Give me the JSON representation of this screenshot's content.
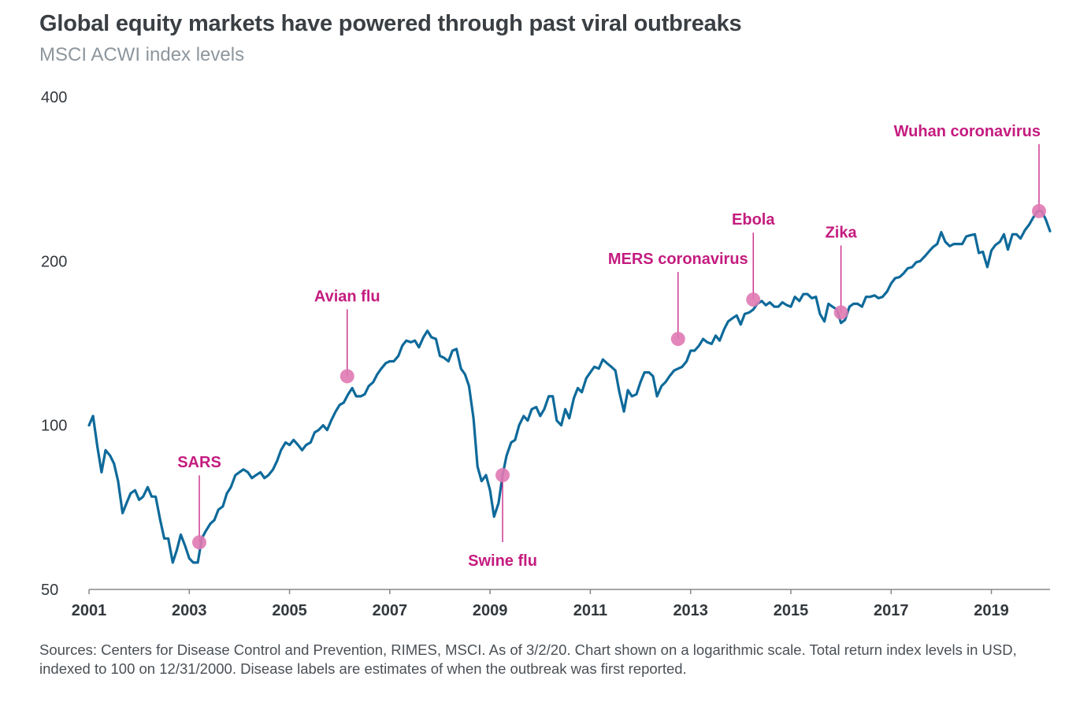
{
  "chart_data": {
    "type": "line",
    "title": "Global equity markets have powered through past viral outbreaks",
    "subtitle": "MSCI ACWI index levels",
    "y_scale": "log",
    "ylim": [
      50,
      400
    ],
    "y_ticks": [
      {
        "value": 50,
        "label": "50"
      },
      {
        "value": 100,
        "label": "100"
      },
      {
        "value": 200,
        "label": "200"
      },
      {
        "value": 400,
        "label": "400"
      }
    ],
    "xlim": [
      2001.0,
      2020.17
    ],
    "x_ticks": [
      {
        "value": 2001,
        "label": "2001"
      },
      {
        "value": 2003,
        "label": "2003"
      },
      {
        "value": 2005,
        "label": "2005"
      },
      {
        "value": 2007,
        "label": "2007"
      },
      {
        "value": 2009,
        "label": "2009"
      },
      {
        "value": 2011,
        "label": "2011"
      },
      {
        "value": 2013,
        "label": "2013"
      },
      {
        "value": 2015,
        "label": "2015"
      },
      {
        "value": 2017,
        "label": "2017"
      },
      {
        "value": 2019,
        "label": "2019"
      }
    ],
    "grid": false,
    "series": [
      {
        "color": "#0e6a9a",
        "points": [
          [
            2001.0,
            100
          ],
          [
            2001.08,
            104
          ],
          [
            2001.17,
            91
          ],
          [
            2001.25,
            82
          ],
          [
            2001.33,
            90
          ],
          [
            2001.42,
            88
          ],
          [
            2001.5,
            85
          ],
          [
            2001.58,
            79
          ],
          [
            2001.67,
            69
          ],
          [
            2001.75,
            72
          ],
          [
            2001.83,
            75
          ],
          [
            2001.92,
            76
          ],
          [
            2002.0,
            73
          ],
          [
            2002.08,
            74
          ],
          [
            2002.17,
            77
          ],
          [
            2002.25,
            74
          ],
          [
            2002.33,
            74
          ],
          [
            2002.42,
            67
          ],
          [
            2002.5,
            62
          ],
          [
            2002.58,
            62
          ],
          [
            2002.67,
            56
          ],
          [
            2002.75,
            59
          ],
          [
            2002.83,
            63
          ],
          [
            2002.92,
            60
          ],
          [
            2003.0,
            57
          ],
          [
            2003.08,
            56
          ],
          [
            2003.17,
            56
          ],
          [
            2003.25,
            62
          ],
          [
            2003.33,
            64
          ],
          [
            2003.42,
            66
          ],
          [
            2003.5,
            67
          ],
          [
            2003.58,
            70
          ],
          [
            2003.67,
            71
          ],
          [
            2003.75,
            75
          ],
          [
            2003.83,
            77
          ],
          [
            2003.92,
            81
          ],
          [
            2004.0,
            82
          ],
          [
            2004.08,
            83
          ],
          [
            2004.17,
            82
          ],
          [
            2004.25,
            80
          ],
          [
            2004.33,
            81
          ],
          [
            2004.42,
            82
          ],
          [
            2004.5,
            80
          ],
          [
            2004.58,
            81
          ],
          [
            2004.67,
            83
          ],
          [
            2004.75,
            86
          ],
          [
            2004.83,
            90
          ],
          [
            2004.92,
            93
          ],
          [
            2005.0,
            92
          ],
          [
            2005.08,
            94
          ],
          [
            2005.17,
            92
          ],
          [
            2005.25,
            90
          ],
          [
            2005.33,
            92
          ],
          [
            2005.42,
            93
          ],
          [
            2005.5,
            97
          ],
          [
            2005.58,
            98
          ],
          [
            2005.67,
            100
          ],
          [
            2005.75,
            98
          ],
          [
            2005.83,
            102
          ],
          [
            2005.92,
            106
          ],
          [
            2006.0,
            109
          ],
          [
            2006.08,
            110
          ],
          [
            2006.17,
            114
          ],
          [
            2006.25,
            117
          ],
          [
            2006.33,
            113
          ],
          [
            2006.42,
            113
          ],
          [
            2006.5,
            114
          ],
          [
            2006.58,
            118
          ],
          [
            2006.67,
            120
          ],
          [
            2006.75,
            124
          ],
          [
            2006.83,
            127
          ],
          [
            2006.92,
            130
          ],
          [
            2007.0,
            131
          ],
          [
            2007.08,
            131
          ],
          [
            2007.17,
            134
          ],
          [
            2007.25,
            140
          ],
          [
            2007.33,
            143
          ],
          [
            2007.42,
            142
          ],
          [
            2007.5,
            143
          ],
          [
            2007.58,
            139
          ],
          [
            2007.67,
            145
          ],
          [
            2007.75,
            149
          ],
          [
            2007.83,
            145
          ],
          [
            2007.92,
            144
          ],
          [
            2008.0,
            134
          ],
          [
            2008.08,
            133
          ],
          [
            2008.17,
            131
          ],
          [
            2008.25,
            137
          ],
          [
            2008.33,
            138
          ],
          [
            2008.42,
            127
          ],
          [
            2008.5,
            124
          ],
          [
            2008.58,
            118
          ],
          [
            2008.67,
            103
          ],
          [
            2008.75,
            84
          ],
          [
            2008.83,
            79
          ],
          [
            2008.92,
            81
          ],
          [
            2009.0,
            76
          ],
          [
            2009.08,
            68
          ],
          [
            2009.17,
            72
          ],
          [
            2009.25,
            81
          ],
          [
            2009.33,
            88
          ],
          [
            2009.42,
            93
          ],
          [
            2009.5,
            94
          ],
          [
            2009.58,
            100
          ],
          [
            2009.67,
            104
          ],
          [
            2009.75,
            102
          ],
          [
            2009.83,
            107
          ],
          [
            2009.92,
            108
          ],
          [
            2010.0,
            104
          ],
          [
            2010.08,
            107
          ],
          [
            2010.17,
            113
          ],
          [
            2010.25,
            113
          ],
          [
            2010.33,
            102
          ],
          [
            2010.42,
            100
          ],
          [
            2010.5,
            107
          ],
          [
            2010.58,
            103
          ],
          [
            2010.67,
            112
          ],
          [
            2010.75,
            117
          ],
          [
            2010.83,
            115
          ],
          [
            2010.92,
            122
          ],
          [
            2011.0,
            125
          ],
          [
            2011.08,
            128
          ],
          [
            2011.17,
            127
          ],
          [
            2011.25,
            132
          ],
          [
            2011.33,
            130
          ],
          [
            2011.42,
            128
          ],
          [
            2011.5,
            126
          ],
          [
            2011.58,
            115
          ],
          [
            2011.67,
            106
          ],
          [
            2011.75,
            116
          ],
          [
            2011.83,
            113
          ],
          [
            2011.92,
            114
          ],
          [
            2012.0,
            120
          ],
          [
            2012.08,
            125
          ],
          [
            2012.17,
            125
          ],
          [
            2012.25,
            123
          ],
          [
            2012.33,
            113
          ],
          [
            2012.42,
            118
          ],
          [
            2012.5,
            120
          ],
          [
            2012.58,
            123
          ],
          [
            2012.67,
            126
          ],
          [
            2012.75,
            127
          ],
          [
            2012.83,
            128
          ],
          [
            2012.92,
            131
          ],
          [
            2013.0,
            137
          ],
          [
            2013.08,
            137
          ],
          [
            2013.17,
            140
          ],
          [
            2013.25,
            144
          ],
          [
            2013.33,
            142
          ],
          [
            2013.42,
            141
          ],
          [
            2013.5,
            146
          ],
          [
            2013.58,
            143
          ],
          [
            2013.67,
            150
          ],
          [
            2013.75,
            155
          ],
          [
            2013.83,
            157
          ],
          [
            2013.92,
            159
          ],
          [
            2014.0,
            153
          ],
          [
            2014.08,
            160
          ],
          [
            2014.17,
            161
          ],
          [
            2014.25,
            163
          ],
          [
            2014.33,
            167
          ],
          [
            2014.42,
            169
          ],
          [
            2014.5,
            166
          ],
          [
            2014.58,
            168
          ],
          [
            2014.67,
            165
          ],
          [
            2014.75,
            165
          ],
          [
            2014.83,
            168
          ],
          [
            2014.92,
            166
          ],
          [
            2015.0,
            165
          ],
          [
            2015.08,
            172
          ],
          [
            2015.17,
            169
          ],
          [
            2015.25,
            174
          ],
          [
            2015.33,
            174
          ],
          [
            2015.42,
            171
          ],
          [
            2015.5,
            172
          ],
          [
            2015.58,
            160
          ],
          [
            2015.67,
            155
          ],
          [
            2015.75,
            167
          ],
          [
            2015.83,
            165
          ],
          [
            2015.92,
            163
          ],
          [
            2016.0,
            154
          ],
          [
            2016.08,
            156
          ],
          [
            2016.17,
            165
          ],
          [
            2016.25,
            167
          ],
          [
            2016.33,
            167
          ],
          [
            2016.42,
            165
          ],
          [
            2016.5,
            172
          ],
          [
            2016.58,
            172
          ],
          [
            2016.67,
            173
          ],
          [
            2016.75,
            171
          ],
          [
            2016.83,
            172
          ],
          [
            2016.92,
            176
          ],
          [
            2017.0,
            182
          ],
          [
            2017.08,
            186
          ],
          [
            2017.17,
            187
          ],
          [
            2017.25,
            190
          ],
          [
            2017.33,
            194
          ],
          [
            2017.42,
            195
          ],
          [
            2017.5,
            199
          ],
          [
            2017.58,
            200
          ],
          [
            2017.67,
            204
          ],
          [
            2017.75,
            208
          ],
          [
            2017.83,
            212
          ],
          [
            2017.92,
            215
          ],
          [
            2018.0,
            226
          ],
          [
            2018.08,
            217
          ],
          [
            2018.17,
            213
          ],
          [
            2018.25,
            215
          ],
          [
            2018.33,
            215
          ],
          [
            2018.42,
            215
          ],
          [
            2018.5,
            222
          ],
          [
            2018.58,
            223
          ],
          [
            2018.67,
            224
          ],
          [
            2018.75,
            207
          ],
          [
            2018.83,
            208
          ],
          [
            2018.92,
            195
          ],
          [
            2019.0,
            209
          ],
          [
            2019.08,
            214
          ],
          [
            2019.17,
            217
          ],
          [
            2019.25,
            224
          ],
          [
            2019.33,
            210
          ],
          [
            2019.42,
            224
          ],
          [
            2019.5,
            224
          ],
          [
            2019.58,
            220
          ],
          [
            2019.67,
            228
          ],
          [
            2019.75,
            233
          ],
          [
            2019.83,
            240
          ],
          [
            2019.92,
            247
          ],
          [
            2020.0,
            247
          ],
          [
            2020.08,
            239
          ],
          [
            2020.17,
            227
          ]
        ]
      }
    ],
    "annotations": [
      {
        "label": "SARS",
        "x": 2003.2,
        "y": 61,
        "label_pos": "above"
      },
      {
        "label": "Avian flu",
        "x": 2006.15,
        "y": 123,
        "label_pos": "above"
      },
      {
        "label": "Swine flu",
        "x": 2009.25,
        "y": 81,
        "label_pos": "below"
      },
      {
        "label": "MERS coronavirus",
        "x": 2012.75,
        "y": 144,
        "label_pos": "above"
      },
      {
        "label": "Ebola",
        "x": 2014.25,
        "y": 170,
        "label_pos": "above"
      },
      {
        "label": "Zika",
        "x": 2016.0,
        "y": 161,
        "label_pos": "above"
      },
      {
        "label": "Wuhan coronavirus",
        "x": 2019.95,
        "y": 247,
        "label_pos": "above"
      }
    ],
    "annotation_colors": {
      "marker": "#e07ab4",
      "text": "#c41c7f"
    }
  },
  "source_text": "Sources: Centers for Disease Control and Prevention, RIMES, MSCI. As of 3/2/20. Chart shown on a logarithmic scale. Total return index levels in USD, indexed to 100 on 12/31/2000. Disease labels are estimates of when the outbreak was first reported."
}
